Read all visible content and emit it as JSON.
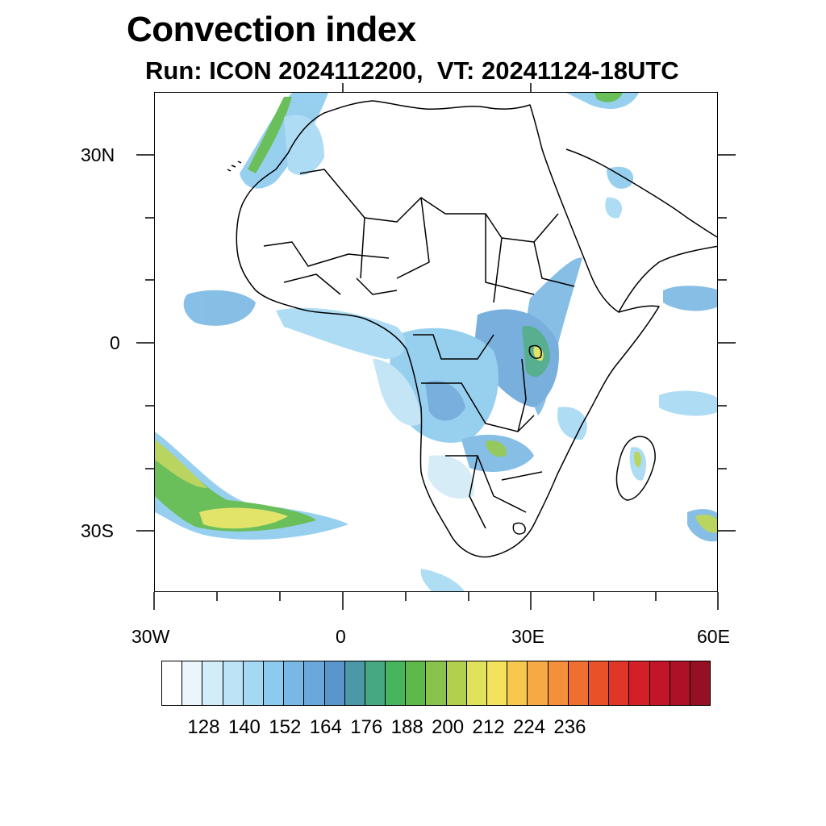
{
  "title": "Convection index",
  "subtitle": "Run: ICON 2024112200,  VT: 20241124-18UTC",
  "map": {
    "x_tick_labels": [
      "30W",
      "0",
      "30E",
      "60E"
    ],
    "y_tick_labels": [
      "30N",
      "0",
      "30S"
    ]
  },
  "colorbar": {
    "colors": [
      "#ffffff",
      "#eaf6fc",
      "#d2ecf8",
      "#bde3f6",
      "#a5d9f3",
      "#8ccbee",
      "#79b8e4",
      "#6aa7da",
      "#5a96cc",
      "#4c98a9",
      "#46a783",
      "#47b45e",
      "#5cb94a",
      "#8ac34c",
      "#b2d04e",
      "#dfe25a",
      "#f3e25c",
      "#f8c74e",
      "#f7aa44",
      "#f48f3a",
      "#ef6f31",
      "#e95129",
      "#df3627",
      "#d32027",
      "#c3152a",
      "#ac1128",
      "#941022"
    ],
    "labels": [
      "128",
      "140",
      "152",
      "164",
      "176",
      "188",
      "200",
      "212",
      "224",
      "236"
    ]
  }
}
